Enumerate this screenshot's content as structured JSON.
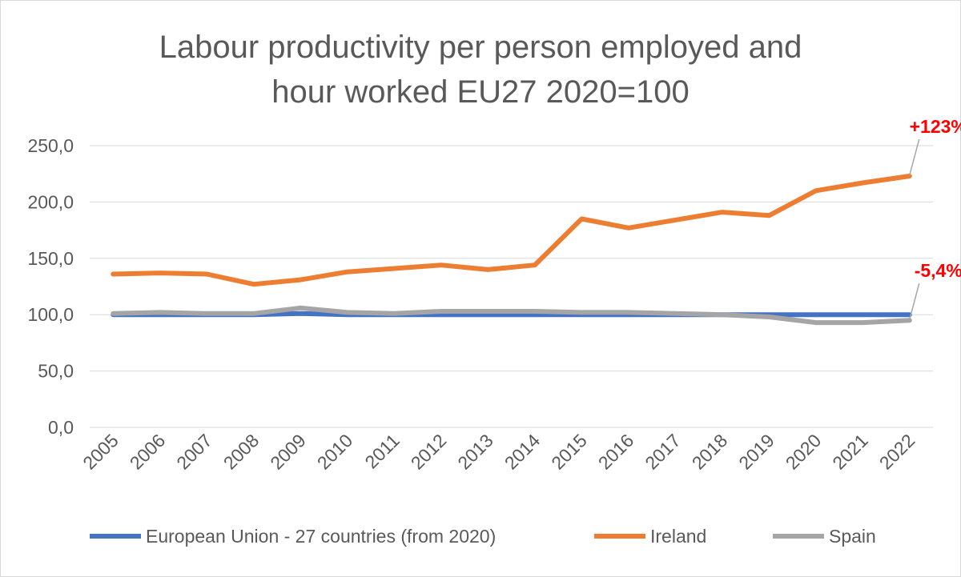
{
  "chart_data": {
    "type": "line",
    "title_lines": [
      "Labour productivity per person employed and",
      "hour worked EU27 2020=100"
    ],
    "xlabel": "",
    "ylabel": "",
    "ylim": [
      0,
      250
    ],
    "y_ticks": [
      0,
      50,
      100,
      150,
      200,
      250
    ],
    "y_tick_labels": [
      "0,0",
      "50,0",
      "100,0",
      "150,0",
      "200,0",
      "250,0"
    ],
    "grid": true,
    "legend_position": "bottom",
    "categories": [
      "2005",
      "2006",
      "2007",
      "2008",
      "2009",
      "2010",
      "2011",
      "2012",
      "2013",
      "2014",
      "2015",
      "2016",
      "2017",
      "2018",
      "2019",
      "2020",
      "2021",
      "2022"
    ],
    "series": [
      {
        "name": "European Union - 27 countries (from 2020)",
        "color": "#4472c4",
        "values": [
          100,
          100,
          100,
          100,
          101,
          100,
          100,
          100,
          100,
          100,
          100,
          100,
          100,
          100,
          100,
          100,
          100,
          100
        ]
      },
      {
        "name": "Ireland",
        "color": "#ed7d31",
        "values": [
          136,
          137,
          136,
          127,
          131,
          138,
          141,
          144,
          140,
          144,
          185,
          177,
          184,
          191,
          188,
          210,
          217,
          223
        ]
      },
      {
        "name": "Spain",
        "color": "#a5a5a5",
        "values": [
          101,
          102,
          101,
          101,
          106,
          102,
          101,
          103,
          103,
          103,
          102,
          102,
          101,
          100,
          98,
          93,
          93,
          95
        ]
      }
    ],
    "annotations": [
      {
        "text": "+123%",
        "series": "Ireland",
        "category": "2022"
      },
      {
        "text": "-5,4%",
        "series": "Spain",
        "category": "2022"
      }
    ]
  }
}
